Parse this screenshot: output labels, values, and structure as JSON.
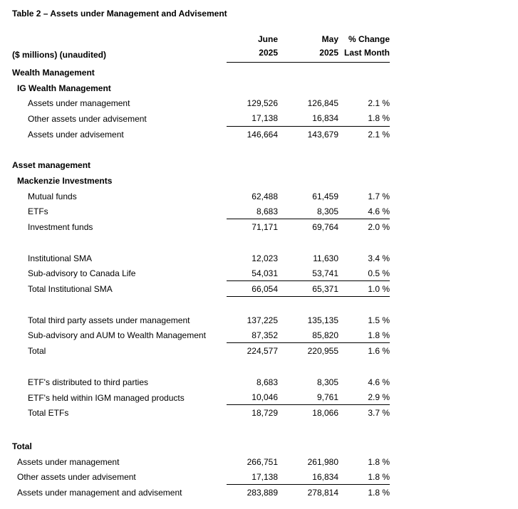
{
  "title": "Table 2 – Assets under Management and Advisement",
  "header": {
    "row_label": "($ millions) (unaudited)",
    "col_june": [
      "June",
      "2025"
    ],
    "col_may": [
      "May",
      "2025"
    ],
    "col_change": [
      "% Change",
      "Last Month"
    ]
  },
  "rows": [
    {
      "label": "Wealth Management",
      "indent": 0,
      "bold": true
    },
    {
      "label": "IG Wealth Management",
      "indent": 1,
      "bold": true
    },
    {
      "label": "Assets under management",
      "indent": 2,
      "jun": "129,526",
      "may": "126,845",
      "chg": "2.1 %"
    },
    {
      "label": "Other assets under advisement",
      "indent": 2,
      "jun": "17,138",
      "may": "16,834",
      "chg": "1.8 %",
      "rule": true
    },
    {
      "label": "Assets under advisement",
      "indent": 2,
      "jun": "146,664",
      "may": "143,679",
      "chg": "2.1 %"
    },
    {
      "type": "spacer"
    },
    {
      "label": "Asset management",
      "indent": 0,
      "bold": true
    },
    {
      "label": "Mackenzie Investments",
      "indent": 1,
      "bold": true
    },
    {
      "label": "Mutual funds",
      "indent": 2,
      "jun": "62,488",
      "may": "61,459",
      "chg": "1.7 %"
    },
    {
      "label": "ETFs",
      "indent": 2,
      "jun": "8,683",
      "may": "8,305",
      "chg": "4.6 %",
      "rule": true
    },
    {
      "label": "Investment funds",
      "indent": 2,
      "jun": "71,171",
      "may": "69,764",
      "chg": "2.0 %"
    },
    {
      "type": "spacer"
    },
    {
      "label": "Institutional SMA",
      "indent": 2,
      "jun": "12,023",
      "may": "11,630",
      "chg": "3.4 %"
    },
    {
      "label": "Sub-advisory to Canada Life",
      "indent": 2,
      "jun": "54,031",
      "may": "53,741",
      "chg": "0.5 %",
      "rule": true
    },
    {
      "label": "Total Institutional SMA",
      "indent": 2,
      "jun": "66,054",
      "may": "65,371",
      "chg": "1.0 %",
      "rule": true
    },
    {
      "type": "spacer"
    },
    {
      "label": "Total third party assets under management",
      "indent": 2,
      "jun": "137,225",
      "may": "135,135",
      "chg": "1.5 %"
    },
    {
      "label": "Sub-advisory and AUM to Wealth Management",
      "indent": 2,
      "jun": "87,352",
      "may": "85,820",
      "chg": "1.8 %",
      "rule": true
    },
    {
      "label": "Total",
      "indent": 2,
      "jun": "224,577",
      "may": "220,955",
      "chg": "1.6 %"
    },
    {
      "type": "spacer"
    },
    {
      "label": "ETF's distributed to third parties",
      "indent": 2,
      "jun": "8,683",
      "may": "8,305",
      "chg": "4.6 %"
    },
    {
      "label": "ETF's held within IGM managed products",
      "indent": 2,
      "jun": "10,046",
      "may": "9,761",
      "chg": "2.9 %",
      "rule": true
    },
    {
      "label": "Total ETFs",
      "indent": 2,
      "jun": "18,729",
      "may": "18,066",
      "chg": "3.7 %"
    },
    {
      "type": "spacer-large"
    },
    {
      "label": "Total",
      "indent": 0,
      "bold": true
    },
    {
      "label": "Assets under management",
      "indent": 1,
      "jun": "266,751",
      "may": "261,980",
      "chg": "1.8 %"
    },
    {
      "label": "Other assets under advisement",
      "indent": 1,
      "jun": "17,138",
      "may": "16,834",
      "chg": "1.8 %",
      "rule": true
    },
    {
      "label": "Assets under management and advisement",
      "indent": 1,
      "jun": "283,889",
      "may": "278,814",
      "chg": "1.8 %"
    }
  ]
}
